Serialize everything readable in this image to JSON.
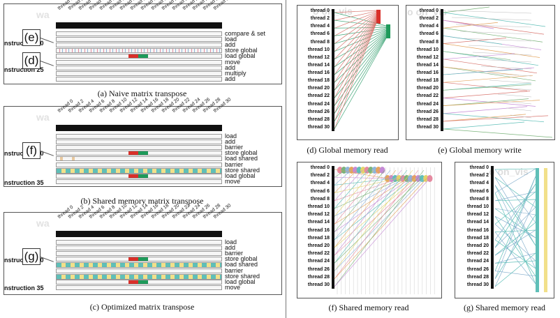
{
  "threads": [
    "thread 0",
    "thread 2",
    "thread 4",
    "thread 6",
    "thread 8",
    "thread 10",
    "thread 12",
    "thread 14",
    "thread 16",
    "thread 18",
    "thread 20",
    "thread 22",
    "thread 24",
    "thread 26",
    "thread 28",
    "thread 30"
  ],
  "watermark": "wa",
  "watermark_right": "o on_vis",
  "panel_a": {
    "caption": "(a)  Naive matrix transpose",
    "callouts": [
      "(e)",
      "(d)"
    ],
    "instructions": [
      "nstruction 30",
      "nstruction 25"
    ],
    "ops": [
      "compare & set",
      "load",
      "add",
      "store global",
      "load global",
      "move",
      "add",
      "multiply",
      "add"
    ]
  },
  "panel_b": {
    "caption": "(b)  Shared memory matrix transpose",
    "callouts": [
      "(f)"
    ],
    "instructions": [
      "nstruction 40",
      "nstruction 35"
    ],
    "ops": [
      "load",
      "add",
      "barrier",
      "store global",
      "load shared",
      "barrier",
      "store shared",
      "load global",
      "move"
    ]
  },
  "panel_c": {
    "caption": "(c)  Optimized matrix transpose",
    "callouts": [
      "(g)"
    ],
    "instructions": [
      "nstruction 40",
      "nstruction 35"
    ],
    "ops": [
      "load",
      "add",
      "barrier",
      "store global",
      "load shared",
      "barrier",
      "store shared",
      "load global",
      "move"
    ]
  },
  "panel_d": {
    "caption": "(d)  Global memory read"
  },
  "panel_e": {
    "caption": "(e)  Global memory write"
  },
  "panel_f": {
    "caption": "(f)  Shared memory read"
  },
  "panel_g": {
    "caption": "(g)  Shared memory read"
  },
  "colors": {
    "red": "#d9302a",
    "green": "#1e9a5a",
    "teal": "#5fbfb8",
    "yellow": "#f2e08a",
    "pink": "#e58aa0"
  }
}
